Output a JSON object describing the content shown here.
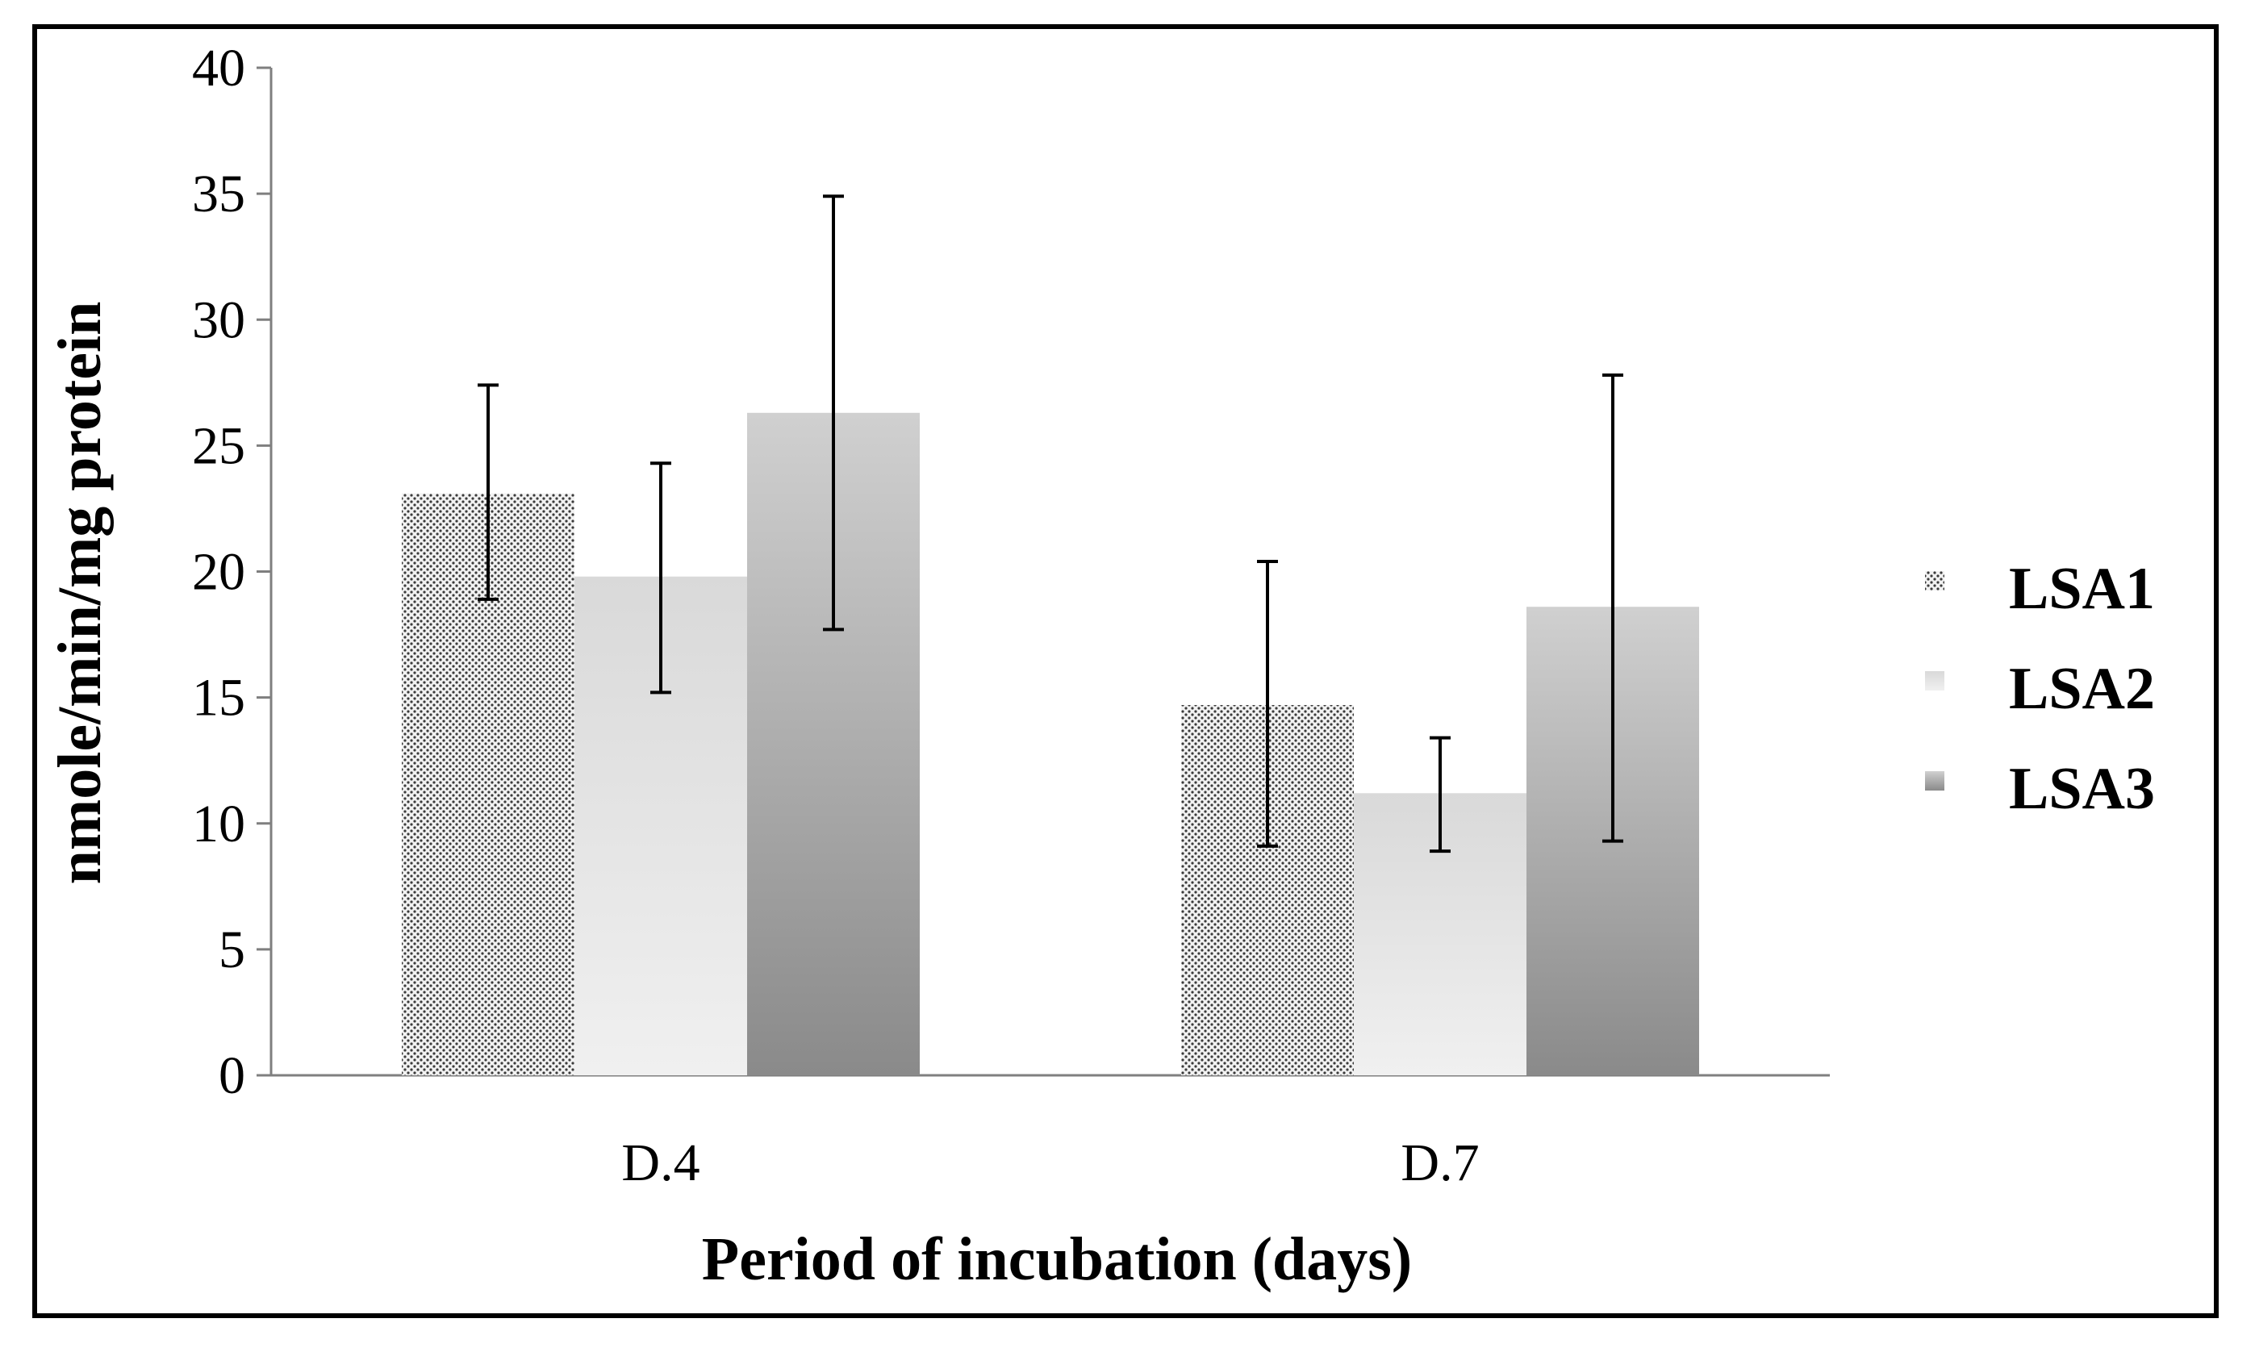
{
  "chart_data": {
    "type": "bar",
    "title": "",
    "xlabel": "Period of incubation (days)",
    "ylabel": "nmole/min/mg protein",
    "categories": [
      "D.4",
      "D.7"
    ],
    "ylim": [
      0,
      40
    ],
    "yticks": [
      0,
      5,
      10,
      15,
      20,
      25,
      30,
      35,
      40
    ],
    "grid": false,
    "legend_position": "right",
    "series": [
      {
        "name": "LSA1",
        "values": [
          23.1,
          14.7
        ],
        "err_low": [
          18.9,
          9.1
        ],
        "err_high": [
          27.4,
          20.4
        ],
        "style": "dotted",
        "color": "#e0e0e0"
      },
      {
        "name": "LSA2",
        "values": [
          19.8,
          11.2
        ],
        "err_low": [
          15.2,
          8.9
        ],
        "err_high": [
          24.3,
          13.4
        ],
        "style": "light-gradient",
        "color": "#d9d9d9"
      },
      {
        "name": "LSA3",
        "values": [
          26.3,
          18.6
        ],
        "err_low": [
          17.7,
          9.3
        ],
        "err_high": [
          34.9,
          27.8
        ],
        "style": "dark-gradient",
        "color": "#a6a6a6"
      }
    ]
  }
}
